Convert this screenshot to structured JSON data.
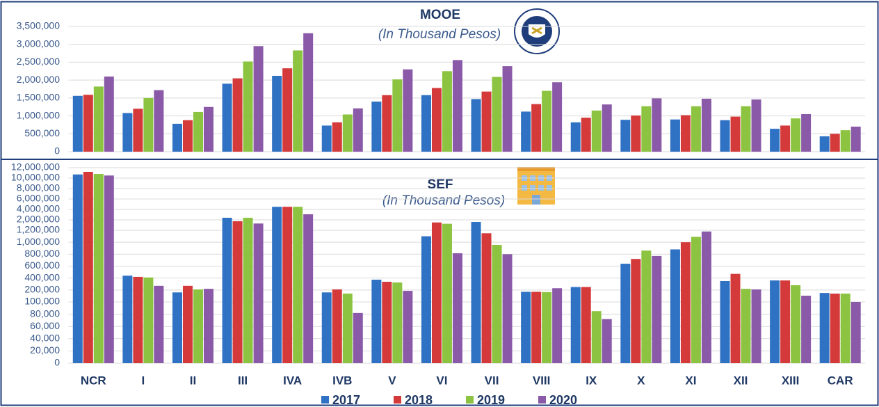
{
  "chart_data": [
    {
      "type": "bar",
      "title": "MOOE",
      "subtitle": "(In Thousand Pesos)",
      "categories": [
        "NCR",
        "I",
        "II",
        "III",
        "IVA",
        "IVB",
        "V",
        "VI",
        "VII",
        "VIII",
        "IX",
        "X",
        "XI",
        "XII",
        "XIII",
        "CAR"
      ],
      "series": [
        {
          "name": "2017",
          "color": "#2f72c4",
          "values": [
            1560000,
            1080000,
            780000,
            1900000,
            2120000,
            730000,
            1400000,
            1580000,
            1470000,
            1120000,
            820000,
            890000,
            900000,
            880000,
            640000,
            430000
          ]
        },
        {
          "name": "2018",
          "color": "#d43a3a",
          "values": [
            1590000,
            1200000,
            880000,
            2050000,
            2330000,
            820000,
            1580000,
            1780000,
            1680000,
            1330000,
            950000,
            1010000,
            1020000,
            980000,
            730000,
            500000
          ]
        },
        {
          "name": "2019",
          "color": "#8cc441",
          "values": [
            1820000,
            1500000,
            1110000,
            2520000,
            2830000,
            1040000,
            2020000,
            2250000,
            2090000,
            1700000,
            1150000,
            1270000,
            1270000,
            1270000,
            930000,
            600000
          ]
        },
        {
          "name": "2020",
          "color": "#8a5aa8",
          "values": [
            2100000,
            1720000,
            1250000,
            2950000,
            3310000,
            1210000,
            2300000,
            2560000,
            2390000,
            1940000,
            1320000,
            1490000,
            1480000,
            1460000,
            1050000,
            700000
          ]
        }
      ],
      "ylim": [
        0,
        3500000
      ],
      "yticks": [
        0,
        {
          "value": 500000,
          "label": "500,000"
        },
        {
          "value": 1000000,
          "label": "1,000,000"
        },
        {
          "value": 1500000,
          "label": "1,500,000"
        },
        {
          "value": 2000000,
          "label": "2,000,000"
        },
        {
          "value": 2500000,
          "label": "2,500,000"
        },
        {
          "value": 3000000,
          "label": "3,000,000"
        },
        {
          "value": 3500000,
          "label": "3,500,000"
        }
      ],
      "grid": true
    },
    {
      "type": "broken-bar",
      "title": "SEF",
      "subtitle": "(In Thousand Pesos)",
      "series": [
        {
          "values": [
            10700000,
            440000,
            160000,
            2400000,
            4500000,
            160000,
            373000,
            1100000,
            1600000,
            170000,
            250000,
            640000,
            880000,
            350000,
            360000,
            150000
          ]
        },
        {
          "values": [
            11200000,
            420000,
            270000,
            1730000,
            4500000,
            210000,
            338000,
            1500000,
            1150000,
            170000,
            250000,
            720000,
            1000000,
            470000,
            360000,
            140000
          ]
        },
        {
          "values": [
            10800000,
            410000,
            210000,
            2400000,
            4500000,
            140000,
            326000,
            1250000,
            955000,
            165000,
            85000,
            860000,
            1090000,
            220000,
            280000,
            140000
          ]
        },
        {
          "values": [
            10500000,
            270000,
            220000,
            1300000,
            3070000,
            82000,
            186000,
            815000,
            800000,
            230000,
            72000,
            770000,
            1180000,
            210000,
            105000,
            100000
          ]
        }
      ],
      "segments": [
        {
          "ylim": [
            0,
            100000
          ],
          "yticks": [
            0,
            {
              "value": 20000,
              "label": "20,000"
            },
            {
              "value": 40000,
              "label": "40,000"
            },
            {
              "value": 60000,
              "label": "60,000"
            },
            {
              "value": 80000,
              "label": "80,000"
            },
            {
              "value": 100000,
              "label": "100,000"
            }
          ]
        },
        {
          "ylim": [
            0,
            1200000
          ],
          "yticks": [
            {
              "value": 200000,
              "label": "200,000"
            },
            {
              "value": 400000,
              "label": "400,000"
            },
            {
              "value": 600000,
              "label": "600,000"
            },
            {
              "value": 800000,
              "label": "800,000"
            },
            {
              "value": 1000000,
              "label": "1,000,000"
            },
            {
              "value": 1200000,
              "label": "1,200,000"
            }
          ]
        },
        {
          "ylim": [
            0,
            12000000
          ],
          "yticks": [
            {
              "value": 2000000,
              "label": "2,000,000"
            },
            {
              "value": 4000000,
              "label": "4,000,000"
            },
            {
              "value": 6000000,
              "label": "6,000,000"
            },
            {
              "value": 8000000,
              "label": "8,000,000"
            },
            {
              "value": 10000000,
              "label": "10,000,000"
            },
            {
              "value": 12000000,
              "label": "12,000,000"
            }
          ]
        }
      ],
      "grid": true
    }
  ]
}
